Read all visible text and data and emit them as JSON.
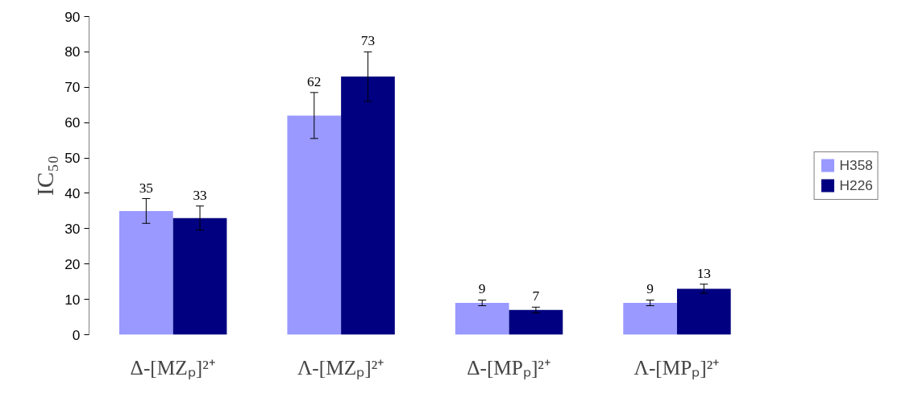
{
  "chart_data": {
    "type": "bar",
    "ylabel": "IC₅₀",
    "categories": [
      "Δ-[MZₚ]²⁺",
      "Λ-[MZₚ]²⁺",
      "Δ-[MPₚ]²⁺",
      "Λ-[MPₚ]²⁺"
    ],
    "series": [
      {
        "name": "H358",
        "color": "#9999ff",
        "values": [
          35,
          62,
          9,
          9
        ],
        "errors": [
          3.5,
          6.5,
          0.8,
          0.8
        ]
      },
      {
        "name": "H226",
        "color": "#000080",
        "values": [
          33,
          73,
          7,
          13
        ],
        "errors": [
          3.4,
          7,
          0.8,
          1.3
        ]
      }
    ],
    "ylim": [
      0,
      90
    ],
    "yticks": [
      0,
      10,
      20,
      30,
      40,
      50,
      60,
      70,
      80,
      90
    ],
    "data_labels": true,
    "grid": false,
    "legend": "right"
  }
}
